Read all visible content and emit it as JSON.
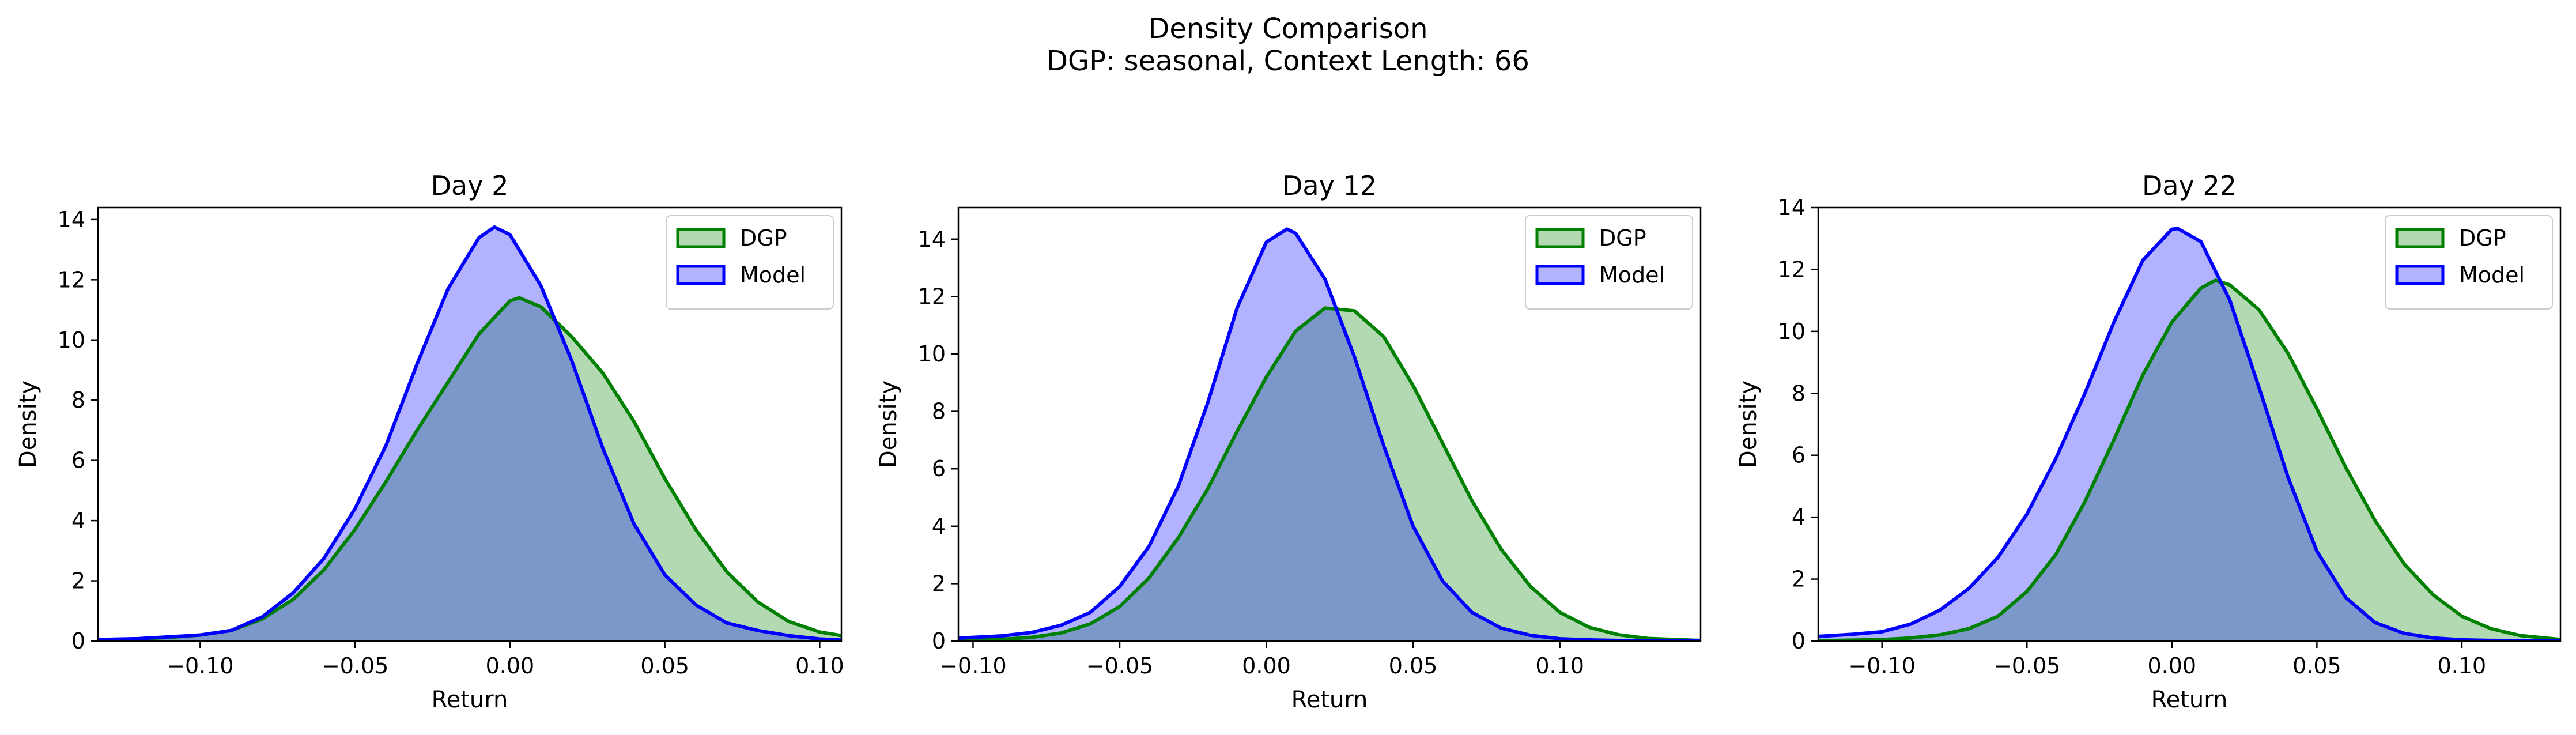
{
  "figure": {
    "title_line1": "Density Comparison",
    "title_line2": "DGP: seasonal, Context Length: 66"
  },
  "colors": {
    "dgp_line": "#008000",
    "dgp_fill": "#008000",
    "model_line": "#0000ff",
    "model_fill": "#0000ff"
  },
  "chart_data": [
    {
      "type": "area",
      "title": "Day 2",
      "xlabel": "Return",
      "ylabel": "Density",
      "xlim": [
        -0.133,
        0.107
      ],
      "ylim": [
        0,
        14.4
      ],
      "xticks": [
        -0.1,
        -0.05,
        0.0,
        0.05,
        0.1
      ],
      "xtick_labels": [
        "−0.10",
        "−0.05",
        "0.00",
        "0.05",
        "0.10"
      ],
      "yticks": [
        0,
        2,
        4,
        6,
        8,
        10,
        12,
        14
      ],
      "ytick_labels": [
        "0",
        "2",
        "4",
        "6",
        "8",
        "10",
        "12",
        "14"
      ],
      "legend": "top-right",
      "series": [
        {
          "name": "DGP",
          "x": [
            -0.133,
            -0.12,
            -0.11,
            -0.1,
            -0.09,
            -0.08,
            -0.07,
            -0.06,
            -0.05,
            -0.04,
            -0.03,
            -0.02,
            -0.01,
            0.0,
            0.003,
            0.01,
            0.02,
            0.03,
            0.04,
            0.05,
            0.06,
            0.07,
            0.08,
            0.09,
            0.1,
            0.107
          ],
          "y": [
            0.05,
            0.07,
            0.12,
            0.2,
            0.35,
            0.73,
            1.38,
            2.37,
            3.71,
            5.3,
            7.0,
            8.6,
            10.2,
            11.3,
            11.4,
            11.1,
            10.1,
            8.9,
            7.3,
            5.4,
            3.7,
            2.3,
            1.3,
            0.65,
            0.3,
            0.18
          ]
        },
        {
          "name": "Model",
          "x": [
            -0.133,
            -0.12,
            -0.11,
            -0.1,
            -0.09,
            -0.08,
            -0.07,
            -0.06,
            -0.05,
            -0.04,
            -0.03,
            -0.02,
            -0.01,
            -0.005,
            0.0,
            0.01,
            0.02,
            0.03,
            0.04,
            0.05,
            0.06,
            0.07,
            0.08,
            0.09,
            0.1,
            0.107
          ],
          "y": [
            0.05,
            0.08,
            0.14,
            0.2,
            0.35,
            0.8,
            1.6,
            2.75,
            4.4,
            6.5,
            9.2,
            11.7,
            13.4,
            13.75,
            13.5,
            11.8,
            9.3,
            6.4,
            3.9,
            2.2,
            1.2,
            0.6,
            0.35,
            0.18,
            0.07,
            0.03
          ]
        }
      ]
    },
    {
      "type": "area",
      "title": "Day 12",
      "xlabel": "Return",
      "ylabel": "Density",
      "xlim": [
        -0.105,
        0.148
      ],
      "ylim": [
        0,
        15.1
      ],
      "xticks": [
        -0.1,
        -0.05,
        0.0,
        0.05,
        0.1
      ],
      "xtick_labels": [
        "−0.10",
        "−0.05",
        "0.00",
        "0.05",
        "0.10"
      ],
      "yticks": [
        0,
        2,
        4,
        6,
        8,
        10,
        12,
        14
      ],
      "ytick_labels": [
        "0",
        "2",
        "4",
        "6",
        "8",
        "10",
        "12",
        "14"
      ],
      "legend": "top-right",
      "series": [
        {
          "name": "DGP",
          "x": [
            -0.105,
            -0.09,
            -0.08,
            -0.07,
            -0.06,
            -0.05,
            -0.04,
            -0.03,
            -0.02,
            -0.01,
            0.0,
            0.01,
            0.02,
            0.03,
            0.04,
            0.05,
            0.06,
            0.07,
            0.08,
            0.09,
            0.1,
            0.11,
            0.12,
            0.13,
            0.148
          ],
          "y": [
            0.02,
            0.06,
            0.13,
            0.28,
            0.6,
            1.2,
            2.2,
            3.6,
            5.3,
            7.3,
            9.2,
            10.8,
            11.6,
            11.5,
            10.6,
            8.9,
            6.9,
            4.9,
            3.2,
            1.9,
            1.0,
            0.48,
            0.22,
            0.09,
            0.02
          ]
        },
        {
          "name": "Model",
          "x": [
            -0.105,
            -0.09,
            -0.08,
            -0.07,
            -0.06,
            -0.05,
            -0.04,
            -0.03,
            -0.02,
            -0.01,
            0.0,
            0.007,
            0.01,
            0.02,
            0.03,
            0.04,
            0.05,
            0.06,
            0.07,
            0.08,
            0.09,
            0.1,
            0.11,
            0.12,
            0.148
          ],
          "y": [
            0.1,
            0.18,
            0.3,
            0.55,
            1.0,
            1.9,
            3.3,
            5.4,
            8.3,
            11.6,
            13.9,
            14.35,
            14.2,
            12.6,
            9.9,
            6.8,
            4.0,
            2.1,
            1.0,
            0.45,
            0.2,
            0.08,
            0.04,
            0.02,
            0.01
          ]
        }
      ]
    },
    {
      "type": "area",
      "title": "Day 22",
      "xlabel": "Return",
      "ylabel": "Density",
      "xlim": [
        -0.122,
        0.134
      ],
      "ylim": [
        0,
        14.0
      ],
      "xticks": [
        -0.1,
        -0.05,
        0.0,
        0.05,
        0.1
      ],
      "xtick_labels": [
        "−0.10",
        "−0.05",
        "0.00",
        "0.05",
        "0.10"
      ],
      "yticks": [
        0,
        2,
        4,
        6,
        8,
        10,
        12,
        14
      ],
      "ytick_labels": [
        "0",
        "2",
        "4",
        "6",
        "8",
        "10",
        "12",
        "14"
      ],
      "legend": "top-right",
      "series": [
        {
          "name": "DGP",
          "x": [
            -0.122,
            -0.1,
            -0.09,
            -0.08,
            -0.07,
            -0.06,
            -0.05,
            -0.04,
            -0.03,
            -0.02,
            -0.01,
            0.0,
            0.01,
            0.015,
            0.02,
            0.03,
            0.04,
            0.05,
            0.06,
            0.07,
            0.08,
            0.09,
            0.1,
            0.11,
            0.12,
            0.134
          ],
          "y": [
            0.01,
            0.05,
            0.1,
            0.2,
            0.4,
            0.8,
            1.6,
            2.8,
            4.5,
            6.5,
            8.6,
            10.3,
            11.4,
            11.65,
            11.5,
            10.7,
            9.3,
            7.5,
            5.6,
            3.9,
            2.5,
            1.5,
            0.8,
            0.4,
            0.18,
            0.05
          ]
        },
        {
          "name": "Model",
          "x": [
            -0.122,
            -0.11,
            -0.1,
            -0.09,
            -0.08,
            -0.07,
            -0.06,
            -0.05,
            -0.04,
            -0.03,
            -0.02,
            -0.01,
            0.0,
            0.002,
            0.01,
            0.02,
            0.03,
            0.04,
            0.05,
            0.06,
            0.07,
            0.08,
            0.09,
            0.1,
            0.11,
            0.134
          ],
          "y": [
            0.15,
            0.22,
            0.3,
            0.55,
            1.0,
            1.7,
            2.7,
            4.1,
            5.9,
            8.0,
            10.3,
            12.3,
            13.3,
            13.32,
            12.9,
            11.0,
            8.2,
            5.3,
            2.9,
            1.4,
            0.6,
            0.25,
            0.1,
            0.04,
            0.02,
            0.01
          ]
        }
      ]
    }
  ]
}
